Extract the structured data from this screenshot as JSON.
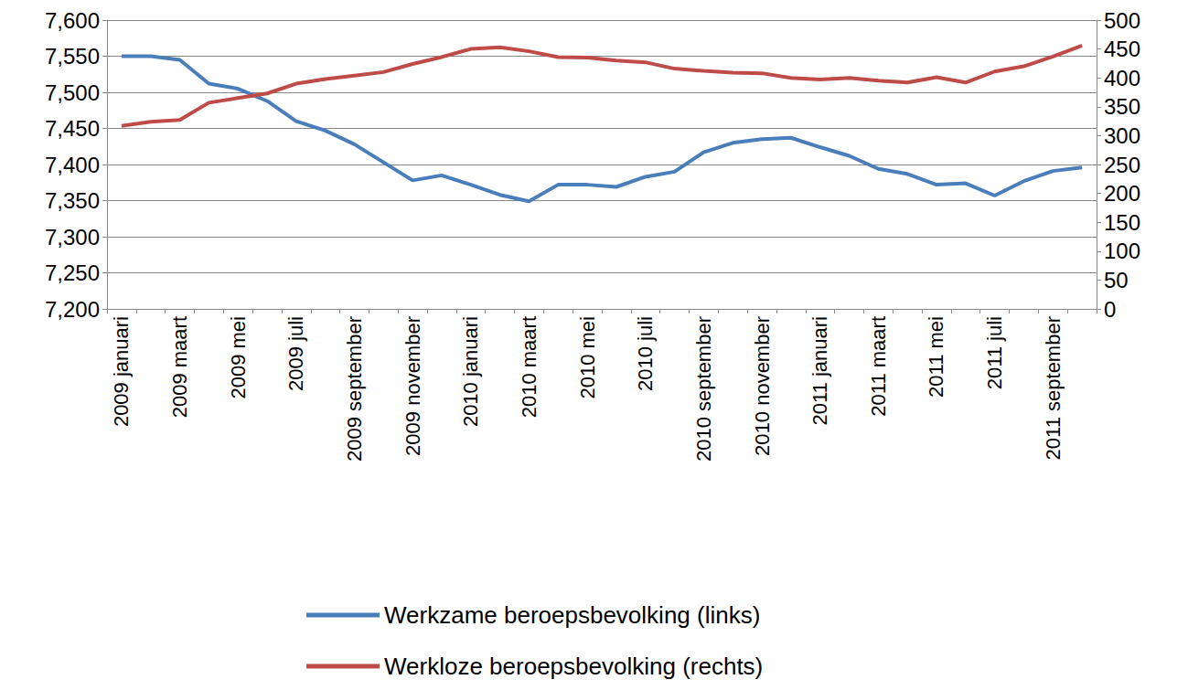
{
  "chart_data": {
    "type": "line",
    "categories": [
      "2009 januari",
      null,
      "2009 maart",
      null,
      "2009 mei",
      null,
      "2009 juli",
      null,
      "2009 september",
      null,
      "2009 november",
      null,
      "2010 januari",
      null,
      "2010 maart",
      null,
      "2010 mei",
      null,
      "2010 juli",
      null,
      "2010 september",
      null,
      "2010 november",
      null,
      "2011 januari",
      null,
      "2011 maart",
      null,
      "2011 mei",
      null,
      "2011 juli",
      null,
      "2011 september",
      null
    ],
    "series": [
      {
        "name": "Werkzame beroepsbevolking (links)",
        "color": "#4a7ebb",
        "axis": "y",
        "values": [
          7550,
          7550,
          7545,
          7512,
          7505,
          7488,
          7460,
          7447,
          7428,
          7403,
          7378,
          7385,
          7372,
          7358,
          7349,
          7372,
          7372,
          7369,
          7383,
          7390,
          7417,
          7430,
          7435,
          7437,
          7424,
          7412,
          7394,
          7387,
          7372,
          7374,
          7357,
          7377,
          7391,
          7396
        ]
      },
      {
        "name": "Werkloze beroepsbevolking (rechts)",
        "color": "#be4b48",
        "axis": "y2",
        "values": [
          317,
          324,
          327,
          357,
          365,
          373,
          390,
          398,
          404,
          410,
          424,
          436,
          450,
          453,
          446,
          436,
          435,
          430,
          427,
          416,
          412,
          409,
          408,
          400,
          397,
          400,
          395,
          392,
          401,
          392,
          411,
          420,
          437,
          456
        ]
      }
    ],
    "ylim": [
      7200,
      7600
    ],
    "yticks": [
      7200,
      7250,
      7300,
      7350,
      7400,
      7450,
      7500,
      7550,
      7600
    ],
    "y2lim": [
      0,
      500
    ],
    "y2ticks": [
      0,
      50,
      100,
      150,
      200,
      250,
      300,
      350,
      400,
      450,
      500
    ],
    "grid": true,
    "legend": "bottom"
  }
}
